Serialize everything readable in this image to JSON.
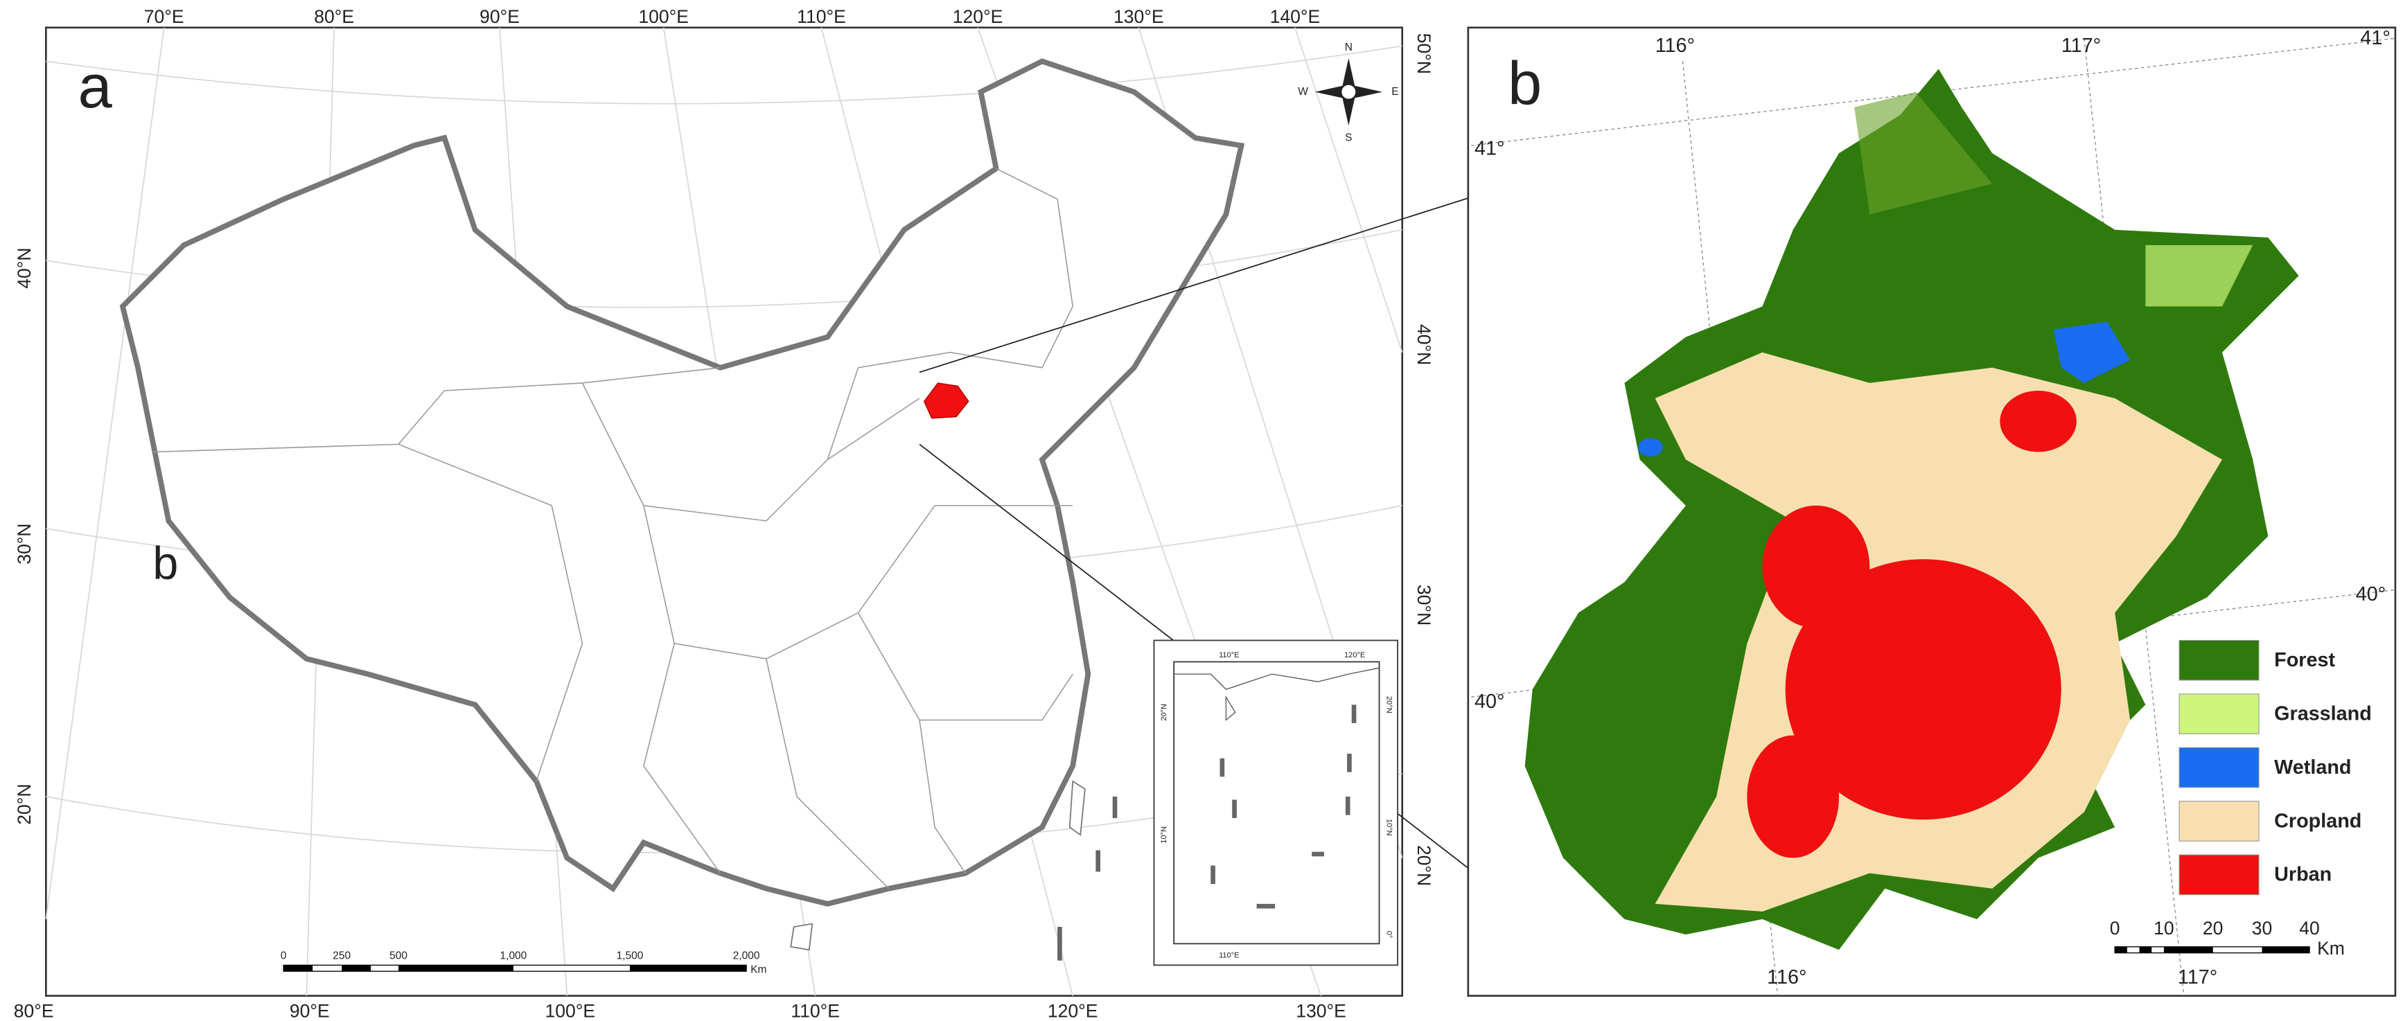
{
  "panel_a": {
    "label": "a",
    "label_b": "b",
    "top_lon_labels": [
      "70°E",
      "80°E",
      "90°E",
      "100°E",
      "110°E",
      "120°E",
      "130°E",
      "140°E"
    ],
    "bottom_lon_labels": [
      "80°E",
      "90°E",
      "100°E",
      "110°E",
      "120°E",
      "130°E"
    ],
    "left_lat_labels": [
      "40°N",
      "30°N",
      "20°N"
    ],
    "right_lat_labels": [
      "50°N",
      "40°N",
      "30°N",
      "20°N"
    ],
    "compass": {
      "n": "N",
      "s": "S",
      "e": "E",
      "w": "W"
    },
    "scale_bar": {
      "labels": [
        "0",
        "250",
        "500",
        "1,000",
        "1,500",
        "2,000"
      ],
      "unit": "Km"
    },
    "inset": {
      "top_labels": [
        "110°E",
        "120°E"
      ],
      "bottom_label": "110°E",
      "left_labels": [
        "20°N",
        "10°N"
      ],
      "right_labels": [
        "20°N",
        "10°N",
        "0°"
      ]
    }
  },
  "panel_b": {
    "label": "b",
    "top_labels": [
      "116°",
      "117°",
      "41°"
    ],
    "left_labels": [
      "41°",
      "40°"
    ],
    "right_label": "40°",
    "bottom_labels": [
      "116°",
      "117°"
    ],
    "legend": [
      {
        "name": "Forest",
        "color": "#2f7a0c"
      },
      {
        "name": "Grassland",
        "color": "#ccf57a"
      },
      {
        "name": "Wetland",
        "color": "#1a6cf0"
      },
      {
        "name": "Cropland",
        "color": "#f7dfb0"
      },
      {
        "name": "Urban",
        "color": "#f01010"
      }
    ],
    "scale_bar": {
      "labels": [
        "0",
        "10",
        "20",
        "30",
        "40"
      ],
      "unit": "Km"
    }
  }
}
